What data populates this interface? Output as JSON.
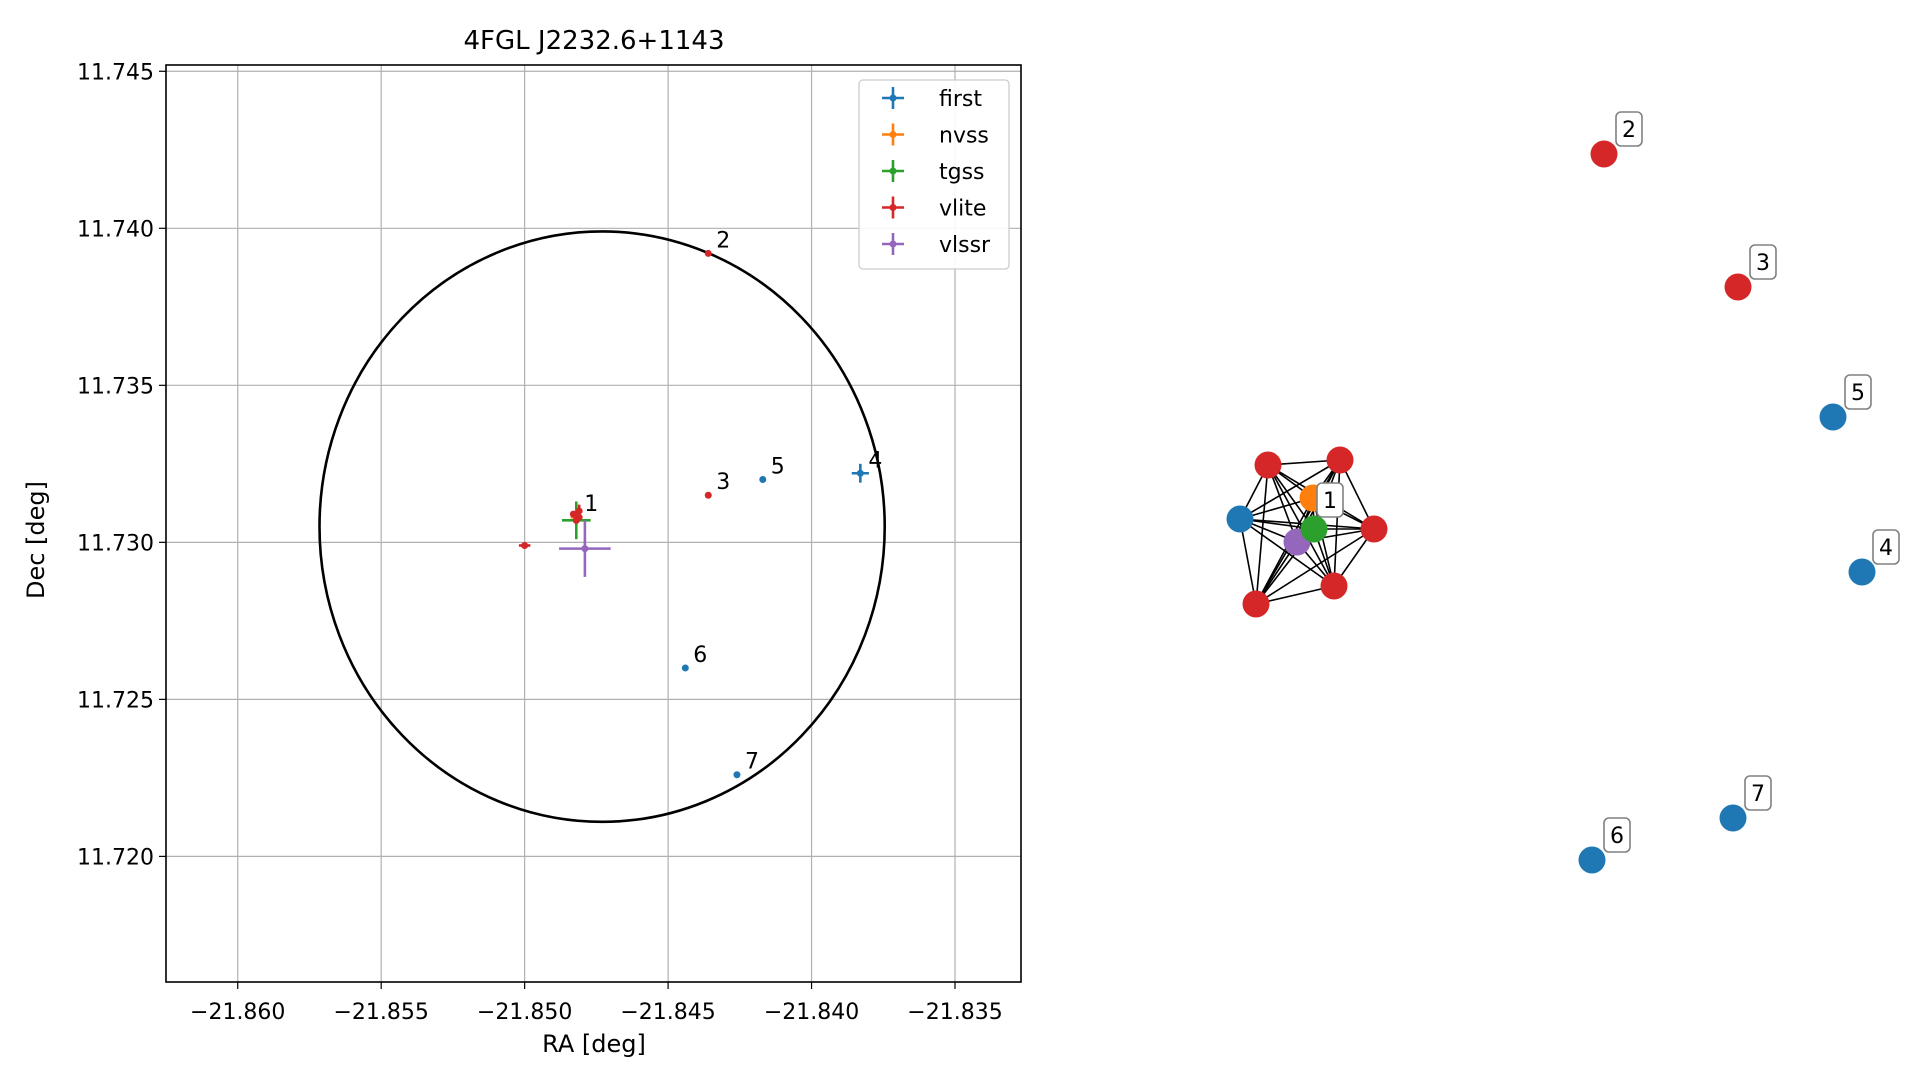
{
  "chart_data": [
    {
      "type": "scatter",
      "title": "4FGL J2232.6+1143",
      "xlabel": "RA [deg]",
      "ylabel": "Dec [deg]",
      "xlim": [
        -21.8625,
        -21.8327
      ],
      "ylim": [
        11.716,
        11.7452
      ],
      "grid": true,
      "legend_position": "top-right",
      "x_ticks": [
        -21.86,
        -21.855,
        -21.85,
        -21.845,
        -21.84,
        -21.835
      ],
      "x_tick_labels": [
        "−21.860",
        "−21.855",
        "−21.850",
        "−21.845",
        "−21.840",
        "−21.835"
      ],
      "y_ticks": [
        11.72,
        11.725,
        11.73,
        11.735,
        11.74,
        11.745
      ],
      "y_tick_labels": [
        "11.720",
        "11.725",
        "11.730",
        "11.735",
        "11.740",
        "11.745"
      ],
      "ellipse": {
        "center": [
          -21.8473,
          11.7305
        ],
        "radius_x": 0.00985,
        "radius_y": 0.0094
      },
      "series": [
        {
          "name": "first",
          "color": "#1f77b4",
          "points": [
            {
              "x": -21.8383,
              "y": 11.7322,
              "xerr": 0.0003,
              "yerr": 0.0003
            },
            {
              "x": -21.8417,
              "y": 11.732,
              "xerr": 0,
              "yerr": 0
            },
            {
              "x": -21.8444,
              "y": 11.726,
              "xerr": 0,
              "yerr": 0
            },
            {
              "x": -21.8426,
              "y": 11.7226,
              "xerr": 0,
              "yerr": 0
            }
          ]
        },
        {
          "name": "nvss",
          "color": "#ff7f0e",
          "points": [
            {
              "x": -21.8482,
              "y": 11.7308,
              "xerr": 0.0002,
              "yerr": 0.0002
            }
          ]
        },
        {
          "name": "tgss",
          "color": "#2ca02c",
          "points": [
            {
              "x": -21.8482,
              "y": 11.7307,
              "xerr": 0.0005,
              "yerr": 0.0006
            }
          ]
        },
        {
          "name": "vlite",
          "color": "#d62728",
          "points": [
            {
              "x": -21.8481,
              "y": 11.731,
              "xerr": 0.0001,
              "yerr": 0.0002
            },
            {
              "x": -21.8483,
              "y": 11.7309,
              "xerr": 0.0001,
              "yerr": 0.0001
            },
            {
              "x": -21.8482,
              "y": 11.7307,
              "xerr": 0.0001,
              "yerr": 0.0001
            },
            {
              "x": -21.8481,
              "y": 11.7308,
              "xerr": 0.0001,
              "yerr": 0.0001
            },
            {
              "x": -21.85,
              "y": 11.7299,
              "xerr": 0.0002,
              "yerr": 0.0001
            },
            {
              "x": -21.8436,
              "y": 11.7392,
              "xerr": 0,
              "yerr": 0
            },
            {
              "x": -21.8436,
              "y": 11.7315,
              "xerr": 0,
              "yerr": 0
            }
          ]
        },
        {
          "name": "vlssr",
          "color": "#9467bd",
          "points": [
            {
              "x": -21.8479,
              "y": 11.7298,
              "xerr": 0.0009,
              "yerr": 0.0009
            }
          ]
        }
      ],
      "annotations": [
        {
          "text": "1",
          "x": -21.8482,
          "y": 11.7308
        },
        {
          "text": "2",
          "x": -21.8436,
          "y": 11.7392
        },
        {
          "text": "3",
          "x": -21.8436,
          "y": 11.7315
        },
        {
          "text": "4",
          "x": -21.8383,
          "y": 11.7322
        },
        {
          "text": "5",
          "x": -21.8417,
          "y": 11.732
        },
        {
          "text": "6",
          "x": -21.8444,
          "y": 11.726
        },
        {
          "text": "7",
          "x": -21.8426,
          "y": 11.7226
        }
      ]
    },
    {
      "type": "network",
      "cluster_labels": [
        "1",
        "2",
        "3",
        "4",
        "5",
        "6",
        "7"
      ]
    }
  ]
}
